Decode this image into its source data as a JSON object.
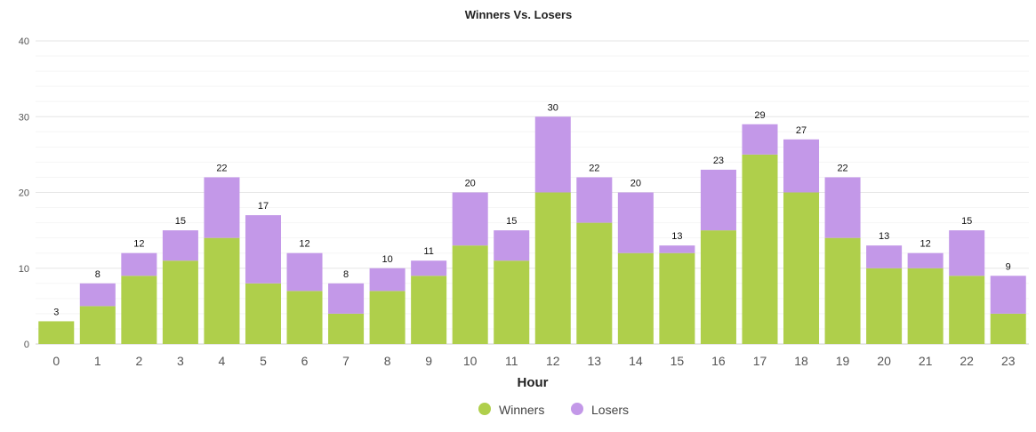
{
  "chart_data": {
    "type": "bar",
    "stacked": true,
    "title": "Winners Vs. Losers",
    "xlabel": "Hour",
    "ylabel": "",
    "ylim": [
      0,
      40
    ],
    "yticks": [
      0,
      10,
      20,
      30,
      40
    ],
    "grid": true,
    "legend_position": "bottom-center",
    "categories": [
      "0",
      "1",
      "2",
      "3",
      "4",
      "5",
      "6",
      "7",
      "8",
      "9",
      "10",
      "11",
      "12",
      "13",
      "14",
      "15",
      "16",
      "17",
      "18",
      "19",
      "20",
      "21",
      "22",
      "23"
    ],
    "series": [
      {
        "name": "Winners",
        "color": "#afcf4b",
        "values": [
          3,
          5,
          9,
          11,
          14,
          8,
          7,
          4,
          7,
          9,
          13,
          11,
          20,
          16,
          12,
          12,
          15,
          25,
          20,
          14,
          10,
          10,
          9,
          4
        ]
      },
      {
        "name": "Losers",
        "color": "#c398e8",
        "values": [
          0,
          3,
          3,
          4,
          8,
          9,
          5,
          4,
          3,
          2,
          7,
          4,
          10,
          6,
          8,
          1,
          8,
          4,
          7,
          8,
          3,
          2,
          6,
          5
        ]
      }
    ],
    "totals": [
      3,
      8,
      12,
      15,
      22,
      17,
      12,
      8,
      10,
      11,
      20,
      15,
      30,
      22,
      20,
      13,
      23,
      29,
      27,
      22,
      13,
      12,
      15,
      9
    ]
  }
}
